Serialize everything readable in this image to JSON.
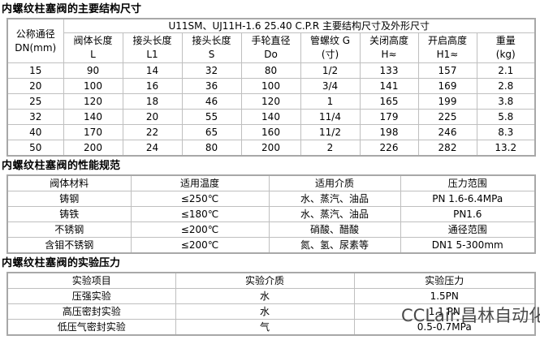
{
  "colors": {
    "background": "#ffffff",
    "border_outer": "#a8a8a8",
    "border_inner": "#bfbfbf",
    "text": "#000000",
    "watermark": "#4a4a4a"
  },
  "section1": {
    "title": {
      "strong": "内螺纹柱塞阀",
      "rest": "的主要结构尺寸"
    },
    "table": {
      "corner": {
        "line1": "公称通径",
        "line2": "DN(mm)"
      },
      "banner": "U11SM、UJ11H-1.6 25.40 C.P.R 主要结构尺寸及外形尺寸",
      "columns": [
        {
          "name": "阀体长度",
          "symbol": "L"
        },
        {
          "name": "接头长度",
          "symbol": "L1"
        },
        {
          "name": "接头长度",
          "symbol": "S"
        },
        {
          "name": "手轮直径",
          "symbol": "Do"
        },
        {
          "name": "管螺纹 G",
          "symbol": "(寸)"
        },
        {
          "name": "关闭高度",
          "symbol": "H≈"
        },
        {
          "name": "开启高度",
          "symbol": "H1≈"
        },
        {
          "name": "重量",
          "symbol": "(kg)"
        }
      ],
      "rows": [
        [
          "15",
          "90",
          "14",
          "32",
          "80",
          "1/2",
          "133",
          "157",
          "2.1"
        ],
        [
          "20",
          "100",
          "16",
          "36",
          "100",
          "3/4",
          "141",
          "169",
          "2.8"
        ],
        [
          "25",
          "120",
          "18",
          "46",
          "120",
          "1",
          "165",
          "199",
          "3.8"
        ],
        [
          "32",
          "140",
          "20",
          "55",
          "140",
          "11/4",
          "179",
          "225",
          "5.8"
        ],
        [
          "40",
          "170",
          "22",
          "65",
          "160",
          "11/2",
          "198",
          "246",
          "8.3"
        ],
        [
          "50",
          "200",
          "24",
          "80",
          "200",
          "2",
          "226",
          "282",
          "13.2"
        ]
      ]
    }
  },
  "section2": {
    "title": {
      "strong": "内螺纹柱塞阀",
      "rest": "的性能规范"
    },
    "table": {
      "headers": [
        "阀体材料",
        "适用温度",
        "适用介质",
        "压力范围"
      ],
      "rows": [
        [
          "铸钢",
          "≤250℃",
          "水、蒸汽、油品",
          "PN 1.6-6.4MPa"
        ],
        [
          "铸铁",
          "≤180℃",
          "水、蒸汽、油品",
          "PN1.6"
        ],
        [
          "不锈钢",
          "≤200℃",
          "硝酸、醋酸",
          "通径范围"
        ],
        [
          "含钼不锈钢",
          "≤200℃",
          "氮、氢、尿素等",
          "DN1 5-300mm"
        ]
      ]
    }
  },
  "section3": {
    "title": {
      "strong": "内螺纹柱塞阀",
      "rest": "的实验压力"
    },
    "table": {
      "headers": [
        "实验项目",
        "实验介质",
        "实验压力"
      ],
      "rows": [
        [
          "压强实验",
          "水",
          "1.5PN"
        ],
        [
          "高压密封实验",
          "水",
          "1.1 PN"
        ],
        [
          "低压气密封实验",
          "气",
          "0.5-0.7MPa"
        ]
      ]
    }
  },
  "watermark": {
    "text": "CCLair.昌林自动化"
  }
}
